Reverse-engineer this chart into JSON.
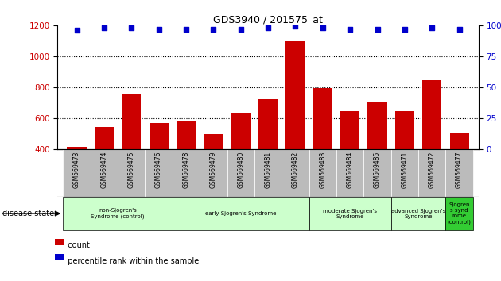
{
  "title": "GDS3940 / 201575_at",
  "samples": [
    "GSM569473",
    "GSM569474",
    "GSM569475",
    "GSM569476",
    "GSM569478",
    "GSM569479",
    "GSM569480",
    "GSM569481",
    "GSM569482",
    "GSM569483",
    "GSM569484",
    "GSM569485",
    "GSM569471",
    "GSM569472",
    "GSM569477"
  ],
  "counts": [
    415,
    540,
    750,
    565,
    580,
    495,
    635,
    720,
    1095,
    795,
    645,
    705,
    645,
    845,
    505
  ],
  "percentiles": [
    96,
    98,
    98,
    97,
    97,
    97,
    97,
    98,
    99,
    98,
    97,
    97,
    97,
    98,
    97
  ],
  "bar_color": "#cc0000",
  "dot_color": "#0000cc",
  "ylim_left": [
    400,
    1200
  ],
  "ylim_right": [
    0,
    100
  ],
  "yticks_left": [
    400,
    600,
    800,
    1000,
    1200
  ],
  "yticks_right": [
    0,
    25,
    50,
    75,
    100
  ],
  "groups": [
    {
      "label": "non-Sjogren's\nSyndrome (control)",
      "start": 0,
      "end": 4,
      "color": "#ccffcc"
    },
    {
      "label": "early Sjogren's Syndrome",
      "start": 4,
      "end": 9,
      "color": "#ccffcc"
    },
    {
      "label": "moderate Sjogren's\nSyndrome",
      "start": 9,
      "end": 12,
      "color": "#ccffcc"
    },
    {
      "label": "advanced Sjogren's\nSyndrome",
      "start": 12,
      "end": 14,
      "color": "#ccffcc"
    },
    {
      "label": "Sjogren\ns synd\nrome\n(control)",
      "start": 14,
      "end": 15,
      "color": "#33cc33"
    }
  ],
  "tick_bg_color": "#bbbbbb",
  "left_axis_color": "#cc0000",
  "right_axis_color": "#0000cc",
  "left_label": "count",
  "right_label": "percentile rank within the sample",
  "disease_state_label": "disease state"
}
